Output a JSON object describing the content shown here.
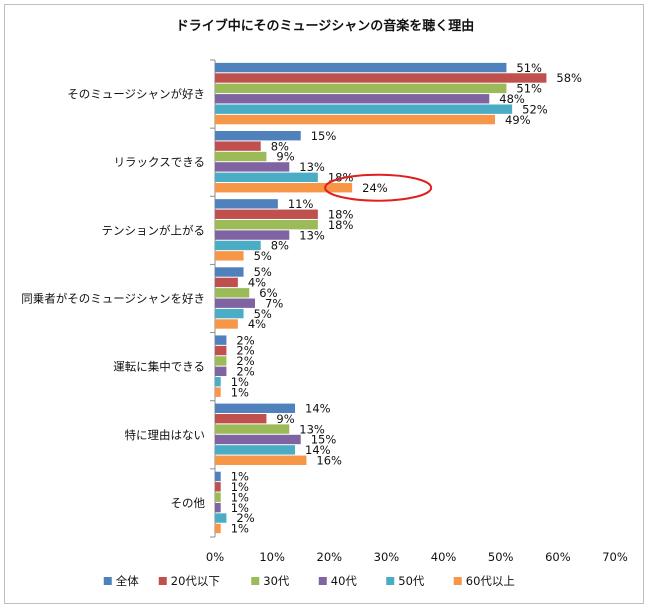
{
  "chart_data": {
    "type": "bar",
    "orientation": "horizontal",
    "title": "ドライブ中にそのミュージシャンの音楽を聴く理由",
    "categories": [
      "そのミュージシャンが好き",
      "リラックスできる",
      "テンションが上がる",
      "同乗者がそのミュージシャンを好き",
      "運転に集中できる",
      "特に理由はない",
      "その他"
    ],
    "series": [
      {
        "name": "全体",
        "color": "#4f81bd",
        "values": [
          51,
          15,
          11,
          5,
          2,
          14,
          1
        ]
      },
      {
        "name": "20代以下",
        "color": "#c0504d",
        "values": [
          58,
          8,
          18,
          4,
          2,
          9,
          1
        ]
      },
      {
        "name": "30代",
        "color": "#9bbb59",
        "values": [
          51,
          9,
          18,
          6,
          2,
          13,
          1
        ]
      },
      {
        "name": "40代",
        "color": "#8064a2",
        "values": [
          48,
          13,
          13,
          7,
          2,
          15,
          1
        ]
      },
      {
        "name": "50代",
        "color": "#4bacc6",
        "values": [
          52,
          18,
          8,
          5,
          1,
          14,
          2
        ]
      },
      {
        "name": "60代以上",
        "color": "#f79646",
        "values": [
          49,
          24,
          5,
          4,
          1,
          16,
          1
        ]
      }
    ],
    "value_suffix": "%",
    "xlim": [
      0,
      70
    ],
    "x_ticks": [
      "0%",
      "10%",
      "20%",
      "30%",
      "40%",
      "50%",
      "60%",
      "70%"
    ],
    "grid": false,
    "legend_position": "bottom",
    "annotation": {
      "category": "リラックスできる",
      "series": "60代以上",
      "shape": "red-ellipse",
      "color": "#e02020"
    }
  }
}
